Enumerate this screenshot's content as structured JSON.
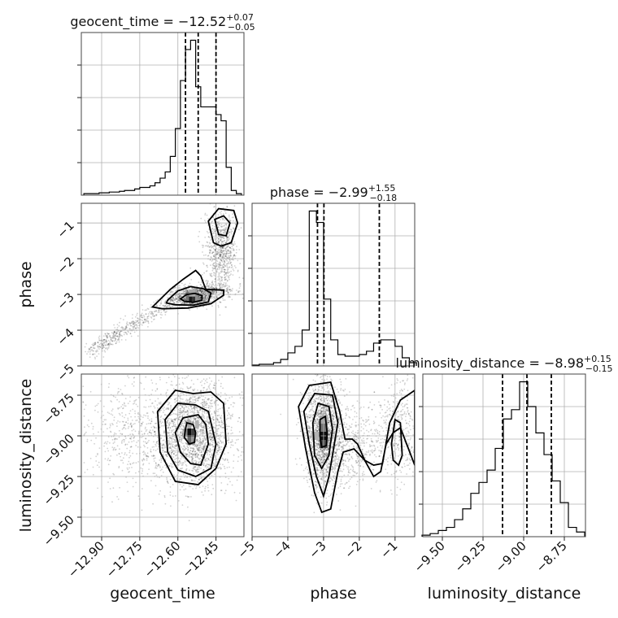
{
  "chart_data": {
    "type": "corner",
    "parameters": [
      {
        "name": "geocent_time",
        "label": "geocent_time",
        "title": {
          "base": "geocent_time = −12.52",
          "plus": "+0.07",
          "minus": "−0.05"
        },
        "range": [
          -12.98,
          -12.34
        ],
        "ticks": [
          -12.9,
          -12.75,
          -12.6,
          -12.45
        ],
        "tick_labels": [
          "−12.90",
          "−12.75",
          "−12.60",
          "−12.45"
        ],
        "quantiles": [
          -12.57,
          -12.52,
          -12.45
        ],
        "hist_x": [
          -12.96,
          -12.94,
          -12.92,
          -12.9,
          -12.88,
          -12.86,
          -12.84,
          -12.82,
          -12.8,
          -12.78,
          -12.76,
          -12.74,
          -12.72,
          -12.7,
          -12.68,
          -12.66,
          -12.64,
          -12.62,
          -12.6,
          -12.58,
          -12.56,
          -12.54,
          -12.52,
          -12.5,
          -12.48,
          -12.46,
          -12.44,
          -12.42,
          -12.4,
          -12.38,
          -12.36
        ],
        "hist_y": [
          0.01,
          0.01,
          0.01,
          0.015,
          0.015,
          0.02,
          0.02,
          0.025,
          0.03,
          0.03,
          0.04,
          0.05,
          0.05,
          0.06,
          0.08,
          0.11,
          0.15,
          0.25,
          0.43,
          0.74,
          0.94,
          1.0,
          0.7,
          0.57,
          0.57,
          0.57,
          0.52,
          0.48,
          0.18,
          0.03,
          0.01
        ]
      },
      {
        "name": "phase",
        "label": "phase",
        "title": {
          "base": "phase = −2.99",
          "plus": "+1.55",
          "minus": "−0.18"
        },
        "range": [
          -5.0,
          -0.45
        ],
        "ticks": [
          -5,
          -4,
          -3,
          -2,
          -1
        ],
        "tick_labels": [
          "−5",
          "−4",
          "−3",
          "−2",
          "−1"
        ],
        "quantiles": [
          -3.17,
          -2.99,
          -1.44
        ],
        "hist_x": [
          -4.9,
          -4.7,
          -4.5,
          -4.3,
          -4.1,
          -3.9,
          -3.7,
          -3.5,
          -3.3,
          -3.1,
          -2.9,
          -2.7,
          -2.5,
          -2.3,
          -2.1,
          -1.9,
          -1.7,
          -1.5,
          -1.3,
          -1.1,
          -0.9,
          -0.7,
          -0.5
        ],
        "hist_y": [
          0.005,
          0.01,
          0.01,
          0.02,
          0.04,
          0.08,
          0.12,
          0.22,
          0.95,
          0.88,
          0.41,
          0.16,
          0.07,
          0.06,
          0.06,
          0.07,
          0.09,
          0.14,
          0.16,
          0.16,
          0.12,
          0.05,
          0.02
        ]
      },
      {
        "name": "luminosity_distance",
        "label": "luminosity_distance",
        "title": {
          "base": "luminosity_distance = −8.98",
          "plus": "+0.15",
          "minus": "−0.15"
        },
        "range": [
          -9.62,
          -8.62
        ],
        "ticks": [
          -9.5,
          -9.25,
          -9.0,
          -8.75
        ],
        "tick_labels": [
          "−9.50",
          "−9.25",
          "−9.00",
          "−8.75"
        ],
        "quantiles": [
          -9.13,
          -8.98,
          -8.83
        ],
        "hist_x": [
          -9.6,
          -9.55,
          -9.5,
          -9.45,
          -9.4,
          -9.35,
          -9.3,
          -9.25,
          -9.2,
          -9.15,
          -9.1,
          -9.05,
          -9.0,
          -8.95,
          -8.9,
          -8.85,
          -8.8,
          -8.75,
          -8.7,
          -8.65
        ],
        "hist_y": [
          0.01,
          0.02,
          0.04,
          0.06,
          0.11,
          0.18,
          0.28,
          0.35,
          0.43,
          0.57,
          0.76,
          0.82,
          1.0,
          0.84,
          0.67,
          0.53,
          0.36,
          0.22,
          0.06,
          0.03
        ]
      }
    ],
    "scatter_2d": [
      {
        "x_param": "geocent_time",
        "y_param": "phase",
        "density_bins": [
          {
            "x": -12.55,
            "y": -3.09,
            "w": 0.012,
            "h": 0.25,
            "level": 0.9
          },
          {
            "x": -12.538,
            "y": -3.09,
            "w": 0.012,
            "h": 0.25,
            "level": 0.8
          },
          {
            "x": -12.562,
            "y": -3.09,
            "w": 0.012,
            "h": 0.25,
            "level": 0.55
          },
          {
            "x": -12.526,
            "y": -3.09,
            "w": 0.012,
            "h": 0.25,
            "level": 0.45
          },
          {
            "x": -12.544,
            "y": -2.96,
            "w": 0.024,
            "h": 0.2,
            "level": 0.35
          }
        ],
        "contours": [
          [
            [
              -12.585,
              -3.1
            ],
            [
              -12.565,
              -3.0
            ],
            [
              -12.535,
              -2.97
            ],
            [
              -12.505,
              -3.03
            ],
            [
              -12.505,
              -3.16
            ],
            [
              -12.54,
              -3.22
            ],
            [
              -12.575,
              -3.19
            ],
            [
              -12.59,
              -3.12
            ],
            [
              -12.585,
              -3.1
            ]
          ],
          [
            [
              -12.64,
              -3.16
            ],
            [
              -12.6,
              -2.9
            ],
            [
              -12.55,
              -2.78
            ],
            [
              -12.5,
              -2.84
            ],
            [
              -12.47,
              -2.96
            ],
            [
              -12.48,
              -3.21
            ],
            [
              -12.54,
              -3.3
            ],
            [
              -12.61,
              -3.29
            ],
            [
              -12.645,
              -3.24
            ],
            [
              -12.64,
              -3.16
            ]
          ],
          [
            [
              -12.7,
              -3.35
            ],
            [
              -12.63,
              -2.86
            ],
            [
              -12.58,
              -2.58
            ],
            [
              -12.53,
              -2.33
            ],
            [
              -12.51,
              -2.48
            ],
            [
              -12.49,
              -2.86
            ],
            [
              -12.42,
              -2.88
            ],
            [
              -12.42,
              -3.02
            ],
            [
              -12.47,
              -3.26
            ],
            [
              -12.56,
              -3.38
            ],
            [
              -12.66,
              -3.4
            ],
            [
              -12.7,
              -3.35
            ]
          ],
          [
            [
              -12.44,
              -1.32
            ],
            [
              -12.455,
              -0.9
            ],
            [
              -12.42,
              -0.8
            ],
            [
              -12.395,
              -1.0
            ],
            [
              -12.41,
              -1.36
            ],
            [
              -12.44,
              -1.32
            ]
          ],
          [
            [
              -12.46,
              -1.55
            ],
            [
              -12.48,
              -0.95
            ],
            [
              -12.44,
              -0.6
            ],
            [
              -12.38,
              -0.65
            ],
            [
              -12.365,
              -1.0
            ],
            [
              -12.39,
              -1.55
            ],
            [
              -12.43,
              -1.65
            ],
            [
              -12.46,
              -1.55
            ]
          ]
        ]
      },
      {
        "x_param": "geocent_time",
        "y_param": "luminosity_distance",
        "density_bins": [
          {
            "x": -12.555,
            "y": -8.98,
            "w": 0.015,
            "h": 0.05,
            "level": 0.95
          },
          {
            "x": -12.54,
            "y": -8.98,
            "w": 0.015,
            "h": 0.05,
            "level": 0.75
          },
          {
            "x": -12.555,
            "y": -9.03,
            "w": 0.015,
            "h": 0.05,
            "level": 0.6
          },
          {
            "x": -12.57,
            "y": -8.98,
            "w": 0.015,
            "h": 0.05,
            "level": 0.45
          },
          {
            "x": -12.54,
            "y": -9.03,
            "w": 0.015,
            "h": 0.05,
            "level": 0.4
          },
          {
            "x": -12.555,
            "y": -8.93,
            "w": 0.015,
            "h": 0.05,
            "level": 0.35
          },
          {
            "x": -12.525,
            "y": -8.93,
            "w": 0.015,
            "h": 0.05,
            "level": 0.3
          }
        ],
        "contours": [
          [
            [
              -12.57,
              -8.96
            ],
            [
              -12.565,
              -8.92
            ],
            [
              -12.54,
              -8.93
            ],
            [
              -12.53,
              -8.98
            ],
            [
              -12.535,
              -9.04
            ],
            [
              -12.555,
              -9.05
            ],
            [
              -12.575,
              -9.01
            ],
            [
              -12.57,
              -8.96
            ]
          ],
          [
            [
              -12.61,
              -8.98
            ],
            [
              -12.58,
              -8.89
            ],
            [
              -12.52,
              -8.87
            ],
            [
              -12.49,
              -8.93
            ],
            [
              -12.48,
              -9.05
            ],
            [
              -12.51,
              -9.18
            ],
            [
              -12.55,
              -9.17
            ],
            [
              -12.59,
              -9.1
            ],
            [
              -12.61,
              -8.98
            ]
          ],
          [
            [
              -12.65,
              -8.9
            ],
            [
              -12.6,
              -8.8
            ],
            [
              -12.53,
              -8.81
            ],
            [
              -12.48,
              -8.85
            ],
            [
              -12.45,
              -9.05
            ],
            [
              -12.47,
              -9.2
            ],
            [
              -12.53,
              -9.25
            ],
            [
              -12.6,
              -9.21
            ],
            [
              -12.64,
              -9.1
            ],
            [
              -12.65,
              -8.9
            ]
          ],
          [
            [
              -12.68,
              -8.85
            ],
            [
              -12.61,
              -8.72
            ],
            [
              -12.54,
              -8.74
            ],
            [
              -12.47,
              -8.73
            ],
            [
              -12.42,
              -8.8
            ],
            [
              -12.41,
              -9.05
            ],
            [
              -12.45,
              -9.2
            ],
            [
              -12.52,
              -9.3
            ],
            [
              -12.61,
              -9.28
            ],
            [
              -12.67,
              -9.1
            ],
            [
              -12.68,
              -8.85
            ]
          ]
        ]
      },
      {
        "x_param": "phase",
        "y_param": "luminosity_distance",
        "density_bins": [
          {
            "x": -3.0,
            "y": -9.0,
            "w": 0.22,
            "h": 0.05,
            "level": 0.95
          },
          {
            "x": -3.0,
            "y": -9.05,
            "w": 0.22,
            "h": 0.05,
            "level": 0.7
          },
          {
            "x": -3.0,
            "y": -8.95,
            "w": 0.22,
            "h": 0.05,
            "level": 0.55
          },
          {
            "x": -3.0,
            "y": -8.9,
            "w": 0.22,
            "h": 0.05,
            "level": 0.35
          },
          {
            "x": -3.22,
            "y": -9.0,
            "w": 0.22,
            "h": 0.05,
            "level": 0.3
          }
        ],
        "contours": [
          [
            [
              -3.1,
              -9.0
            ],
            [
              -3.1,
              -8.9
            ],
            [
              -2.95,
              -8.88
            ],
            [
              -2.9,
              -8.98
            ],
            [
              -2.92,
              -9.06
            ],
            [
              -3.05,
              -9.07
            ],
            [
              -3.1,
              -9.0
            ]
          ],
          [
            [
              -3.3,
              -8.92
            ],
            [
              -3.15,
              -8.8
            ],
            [
              -2.85,
              -8.82
            ],
            [
              -2.75,
              -8.96
            ],
            [
              -2.85,
              -9.12
            ],
            [
              -3.05,
              -9.2
            ],
            [
              -3.25,
              -9.12
            ],
            [
              -3.3,
              -8.92
            ]
          ],
          [
            [
              -3.55,
              -8.85
            ],
            [
              -3.25,
              -8.74
            ],
            [
              -2.75,
              -8.75
            ],
            [
              -2.6,
              -8.92
            ],
            [
              -2.85,
              -9.25
            ],
            [
              -3.0,
              -9.37
            ],
            [
              -3.2,
              -9.25
            ],
            [
              -3.4,
              -9.05
            ],
            [
              -3.55,
              -8.85
            ]
          ],
          [
            [
              -3.7,
              -8.82
            ],
            [
              -3.4,
              -8.69
            ],
            [
              -2.8,
              -8.67
            ],
            [
              -2.55,
              -8.85
            ],
            [
              -2.4,
              -9.02
            ],
            [
              -2.2,
              -9.02
            ],
            [
              -2.05,
              -9.05
            ],
            [
              -1.85,
              -9.15
            ],
            [
              -1.6,
              -9.18
            ],
            [
              -1.35,
              -9.17
            ],
            [
              -1.15,
              -8.92
            ],
            [
              -0.85,
              -8.78
            ],
            [
              -0.45,
              -8.72
            ],
            [
              -0.45,
              -9.18
            ],
            [
              -0.85,
              -8.95
            ],
            [
              -1.05,
              -8.98
            ],
            [
              -1.25,
              -9.05
            ],
            [
              -1.4,
              -9.22
            ],
            [
              -1.6,
              -9.25
            ],
            [
              -1.85,
              -9.15
            ],
            [
              -2.15,
              -9.08
            ],
            [
              -2.45,
              -9.1
            ],
            [
              -2.6,
              -9.22
            ],
            [
              -2.8,
              -9.45
            ],
            [
              -3.05,
              -9.47
            ],
            [
              -3.25,
              -9.35
            ],
            [
              -3.5,
              -9.08
            ],
            [
              -3.7,
              -8.82
            ]
          ],
          [
            [
              -1.1,
              -9.05
            ],
            [
              -1.0,
              -8.9
            ],
            [
              -0.85,
              -8.92
            ],
            [
              -0.8,
              -9.12
            ],
            [
              -0.9,
              -9.18
            ],
            [
              -1.05,
              -9.15
            ],
            [
              -1.1,
              -9.05
            ]
          ]
        ]
      }
    ]
  }
}
